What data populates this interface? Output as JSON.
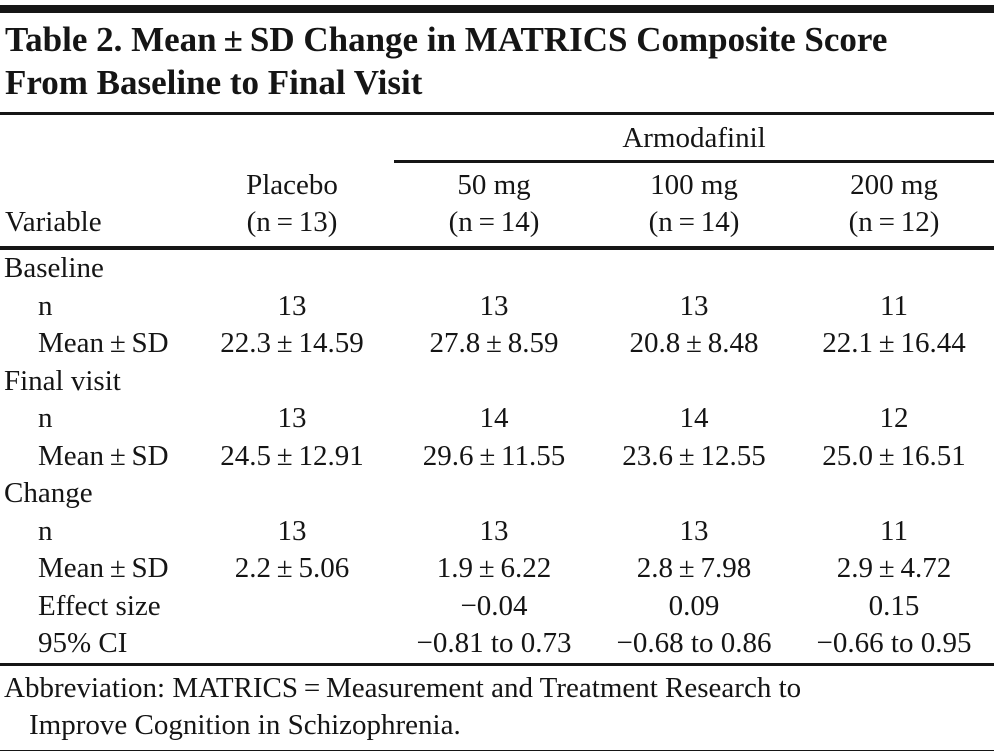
{
  "title": {
    "line1": "Table 2. Mean ± SD Change in MATRICS Composite Score",
    "line2": "From Baseline to Final Visit"
  },
  "table": {
    "group_label": "Armodafinil",
    "variable_label": "Variable",
    "columns": [
      {
        "name": "Placebo",
        "n": "(n = 13)"
      },
      {
        "name": "50 mg",
        "n": "(n = 14)"
      },
      {
        "name": "100 mg",
        "n": "(n = 14)"
      },
      {
        "name": "200 mg",
        "n": "(n = 12)"
      }
    ],
    "rows": [
      {
        "type": "section",
        "label": "Baseline"
      },
      {
        "type": "data",
        "label": "n",
        "v": [
          "13",
          "13",
          "13",
          "11"
        ]
      },
      {
        "type": "data",
        "label": "Mean ± SD",
        "v": [
          "22.3 ± 14.59",
          "27.8 ± 8.59",
          "20.8 ± 8.48",
          "22.1 ± 16.44"
        ]
      },
      {
        "type": "section",
        "label": "Final visit"
      },
      {
        "type": "data",
        "label": "n",
        "v": [
          "13",
          "14",
          "14",
          "12"
        ]
      },
      {
        "type": "data",
        "label": "Mean ± SD",
        "v": [
          "24.5 ± 12.91",
          "29.6 ± 11.55",
          "23.6 ± 12.55",
          "25.0 ± 16.51"
        ]
      },
      {
        "type": "section",
        "label": "Change"
      },
      {
        "type": "data",
        "label": "n",
        "v": [
          "13",
          "13",
          "13",
          "11"
        ]
      },
      {
        "type": "data",
        "label": "Mean ± SD",
        "v": [
          "2.2 ± 5.06",
          "1.9 ± 6.22",
          "2.8 ± 7.98",
          "2.9 ± 4.72"
        ]
      },
      {
        "type": "data",
        "label": "Effect size",
        "v": [
          "",
          "−0.04",
          "0.09",
          "0.15"
        ]
      },
      {
        "type": "data",
        "label": "95% CI",
        "v": [
          "",
          "−0.81 to 0.73",
          "−0.68 to 0.86",
          "−0.66 to 0.95"
        ]
      }
    ]
  },
  "footnote": {
    "line1": "Abbreviation: MATRICS = Measurement and Treatment Research to",
    "line2": "Improve Cognition in Schizophrenia."
  },
  "colors": {
    "text": "#151515",
    "rule": "#161616",
    "background": "#ffffff"
  }
}
